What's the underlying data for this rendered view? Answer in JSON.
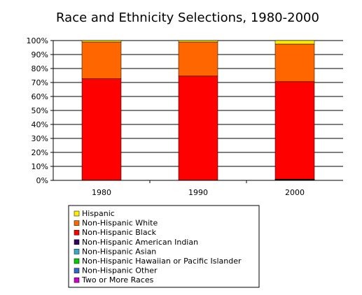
{
  "chart_data": {
    "type": "bar",
    "stacked": true,
    "title": "Race and Ethnicity Selections, 1980-2000",
    "xlabel": "",
    "ylabel": "",
    "ylim": [
      0,
      100
    ],
    "y_ticks": [
      "0%",
      "10%",
      "20%",
      "30%",
      "40%",
      "50%",
      "60%",
      "70%",
      "80%",
      "90%",
      "100%"
    ],
    "grid": true,
    "legend_position": "bottom",
    "categories": [
      "1980",
      "1990",
      "2000"
    ],
    "series": [
      {
        "name": "Two or More Races",
        "color": "#cc00cc",
        "values": [
          0,
          0,
          0.3
        ]
      },
      {
        "name": "Non-Hispanic Other",
        "color": "#3366cc",
        "values": [
          0,
          0,
          0.2
        ]
      },
      {
        "name": "Non-Hispanic Hawaiian or Pacific Islander",
        "color": "#00cc00",
        "values": [
          0,
          0,
          0.1
        ]
      },
      {
        "name": "Non-Hispanic Asian",
        "color": "#33aacc",
        "values": [
          0.1,
          0.1,
          0.1
        ]
      },
      {
        "name": "Non-Hispanic American Indian",
        "color": "#330066",
        "values": [
          0.1,
          0.1,
          0.2
        ]
      },
      {
        "name": "Non-Hispanic Black",
        "color": "#ff0000",
        "values": [
          72.5,
          74.4,
          69.7
        ]
      },
      {
        "name": "Non-Hispanic White",
        "color": "#ff6600",
        "values": [
          26.3,
          24.4,
          26.9
        ]
      },
      {
        "name": "Hispanic",
        "color": "#ffee00",
        "values": [
          1.0,
          1.0,
          2.5
        ]
      }
    ],
    "legend_order": [
      "Hispanic",
      "Non-Hispanic White",
      "Non-Hispanic Black",
      "Non-Hispanic American Indian",
      "Non-Hispanic Asian",
      "Non-Hispanic Hawaiian or Pacific Islander",
      "Non-Hispanic Other",
      "Two or More Races"
    ]
  }
}
